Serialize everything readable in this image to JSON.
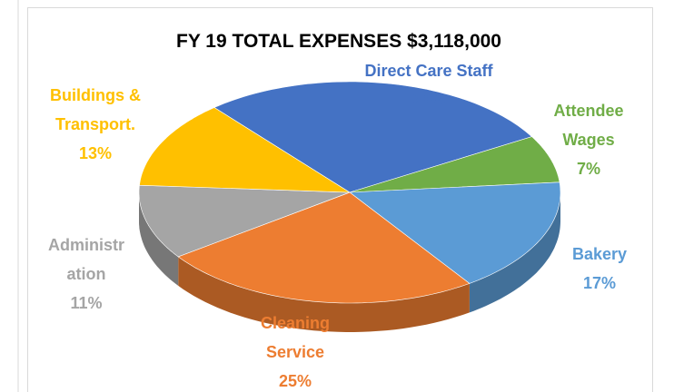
{
  "chart_data": {
    "type": "pie",
    "title": "FY 19 TOTAL EXPENSES $3,118,000",
    "categories": [
      "Direct Care Staff",
      "Attendee Wages",
      "Bakery",
      "Cleaning Service",
      "Administration",
      "Buildings & Transport."
    ],
    "values": [
      28,
      7,
      17,
      25,
      11,
      13
    ],
    "value_labels": [
      "28%",
      "7%",
      "17%",
      "25%",
      "11%",
      "13%"
    ],
    "colors": [
      "#4472c4",
      "#70ad47",
      "#5b9bd5",
      "#ed7d31",
      "#a5a5a5",
      "#ffc000"
    ]
  }
}
